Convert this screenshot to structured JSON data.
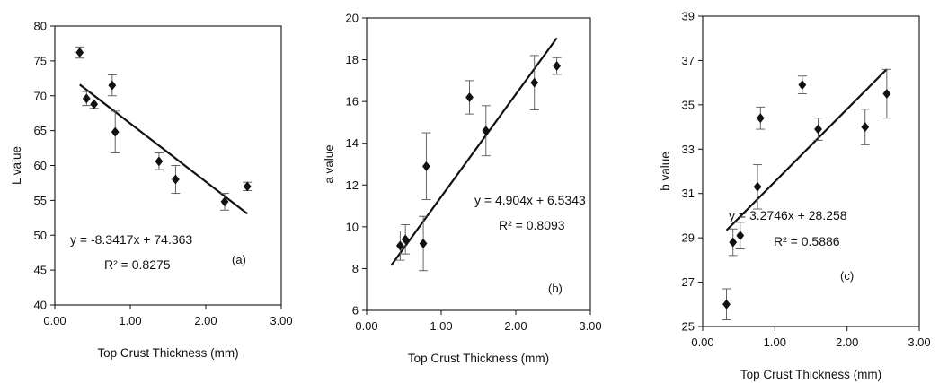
{
  "chart_data": [
    {
      "type": "scatter",
      "panel_label": "(a)",
      "xlabel": "Top Crust Thickness (mm)",
      "ylabel": "L value",
      "xlim": [
        0.0,
        3.0
      ],
      "ylim": [
        40,
        80
      ],
      "x_ticks": [
        "0.00",
        "1.00",
        "2.00",
        "3.00"
      ],
      "y_ticks": [
        "40",
        "45",
        "50",
        "55",
        "60",
        "65",
        "70",
        "75",
        "80"
      ],
      "series": [
        {
          "marker": "diamond",
          "points": [
            {
              "x": 0.33,
              "y": 76.2,
              "err": 0.8
            },
            {
              "x": 0.42,
              "y": 69.6,
              "err": 1.0
            },
            {
              "x": 0.52,
              "y": 68.8,
              "err": 0.6
            },
            {
              "x": 0.76,
              "y": 71.5,
              "err": 1.5
            },
            {
              "x": 0.8,
              "y": 64.8,
              "err": 3.0
            },
            {
              "x": 1.38,
              "y": 60.6,
              "err": 1.2
            },
            {
              "x": 1.6,
              "y": 58.0,
              "err": 2.0
            },
            {
              "x": 2.25,
              "y": 54.8,
              "err": 1.2
            },
            {
              "x": 2.55,
              "y": 57.0,
              "err": 0.6
            }
          ]
        }
      ],
      "trendline": {
        "slope": -8.3417,
        "intercept": 74.363,
        "x_range": [
          0.33,
          2.55
        ]
      },
      "equation": "y = -8.3417x + 74.363",
      "r2_label": "R² = 0.8275",
      "grid": false
    },
    {
      "type": "scatter",
      "panel_label": "(b)",
      "xlabel": "Top Crust Thickness (mm)",
      "ylabel": "a value",
      "xlim": [
        0.0,
        3.0
      ],
      "ylim": [
        6,
        20
      ],
      "x_ticks": [
        "0.00",
        "1.00",
        "2.00",
        "3.00"
      ],
      "y_ticks": [
        "6",
        "8",
        "10",
        "12",
        "14",
        "16",
        "18",
        "20"
      ],
      "series": [
        {
          "marker": "diamond",
          "points": [
            {
              "x": 0.45,
              "y": 9.1,
              "err": 0.7
            },
            {
              "x": 0.52,
              "y": 9.4,
              "err": 0.7
            },
            {
              "x": 0.76,
              "y": 9.2,
              "err": 1.3
            },
            {
              "x": 0.8,
              "y": 12.9,
              "err": 1.6
            },
            {
              "x": 1.38,
              "y": 16.2,
              "err": 0.8
            },
            {
              "x": 1.6,
              "y": 14.6,
              "err": 1.2
            },
            {
              "x": 2.25,
              "y": 16.9,
              "err": 1.3
            },
            {
              "x": 2.55,
              "y": 17.7,
              "err": 0.4
            }
          ]
        }
      ],
      "trendline": {
        "slope": 4.904,
        "intercept": 6.5343,
        "x_range": [
          0.33,
          2.55
        ]
      },
      "equation": "y = 4.904x + 6.5343",
      "r2_label": "R² = 0.8093",
      "grid": false
    },
    {
      "type": "scatter",
      "panel_label": "(c)",
      "xlabel": "Top Crust Thickness (mm)",
      "ylabel": "b value",
      "xlim": [
        0.0,
        3.0
      ],
      "ylim": [
        25,
        39
      ],
      "x_ticks": [
        "0.00",
        "1.00",
        "2.00",
        "3.00"
      ],
      "y_ticks": [
        "25",
        "27",
        "29",
        "31",
        "33",
        "35",
        "37",
        "39"
      ],
      "series": [
        {
          "marker": "diamond",
          "points": [
            {
              "x": 0.33,
              "y": 26.0,
              "err": 0.7
            },
            {
              "x": 0.42,
              "y": 28.8,
              "err": 0.6
            },
            {
              "x": 0.52,
              "y": 29.1,
              "err": 0.6
            },
            {
              "x": 0.76,
              "y": 31.3,
              "err": 1.0
            },
            {
              "x": 0.8,
              "y": 34.4,
              "err": 0.5
            },
            {
              "x": 1.38,
              "y": 35.9,
              "err": 0.4
            },
            {
              "x": 1.6,
              "y": 33.9,
              "err": 0.5
            },
            {
              "x": 2.25,
              "y": 34.0,
              "err": 0.8
            },
            {
              "x": 2.55,
              "y": 35.5,
              "err": 1.1
            }
          ]
        }
      ],
      "trendline": {
        "slope": 3.2746,
        "intercept": 28.258,
        "x_range": [
          0.33,
          2.55
        ]
      },
      "equation": "y = 3.2746x + 28.258",
      "r2_label": "R² = 0.5886",
      "grid": false
    }
  ]
}
